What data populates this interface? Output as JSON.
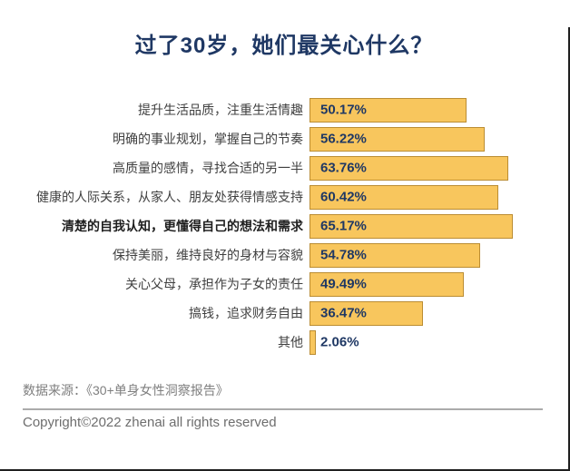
{
  "page": {
    "title": "过了30岁，她们最关心什么？"
  },
  "chart_data": {
    "type": "bar",
    "orientation": "horizontal",
    "title": "过了30岁，她们最关心什么？",
    "categories": [
      "提升生活品质，注重生活情趣",
      "明确的事业规划，掌握自己的节奏",
      "高质量的感情，寻找合适的另一半",
      "健康的人际关系，从家人、朋友处获得情感支持",
      "清楚的自我认知，更懂得自己的想法和需求",
      "保持美丽，维持良好的身材与容貌",
      "关心父母，承担作为子女的责任",
      "搞钱，追求财务自由",
      "其他"
    ],
    "values": [
      50.17,
      56.22,
      63.76,
      60.42,
      65.17,
      54.78,
      49.49,
      36.47,
      2.06
    ],
    "value_labels": [
      "50.17%",
      "56.22%",
      "63.76%",
      "60.42%",
      "65.17%",
      "54.78%",
      "49.49%",
      "36.47%",
      "2.06%"
    ],
    "emphasized_category_index": 4,
    "xlim": [
      0,
      70
    ],
    "grid": false,
    "legend": "none",
    "bar_color": "#F8C65D",
    "bar_border_color": "#BB8D33",
    "value_text_color": "#1F3864",
    "title_color": "#1F3864"
  },
  "footer": {
    "source": "数据来源：《30+单身女性洞察报告》",
    "copyright": "Copyright©2022  zhenai  all rights reserved"
  }
}
